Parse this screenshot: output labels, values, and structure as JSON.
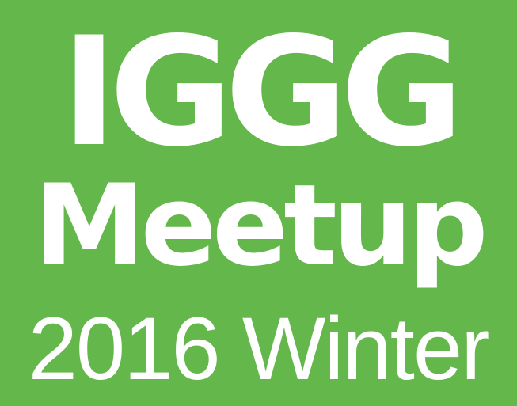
{
  "poster": {
    "line1": "IGGG",
    "line2": "Meetup",
    "line3": "2016 Winter"
  },
  "colors": {
    "background": "#64b74a",
    "text": "#ffffff"
  }
}
